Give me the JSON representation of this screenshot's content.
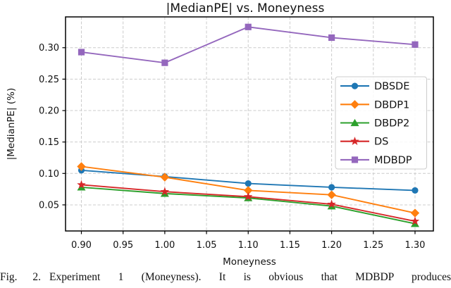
{
  "caption": {
    "label": "Fig. 2.",
    "text": "Experiment 1 (Moneyness). It is obvious that MDBDP produces"
  },
  "chart_data": {
    "type": "line",
    "title": "|MedianPE| vs. Moneyness",
    "xlabel": "Moneyness",
    "ylabel": "|MedianPE| (%)",
    "x": [
      0.9,
      1.0,
      1.1,
      1.2,
      1.3
    ],
    "series": [
      {
        "name": "DBSDE",
        "color": "#1f77b4",
        "marker": "circle",
        "values": [
          0.105,
          0.095,
          0.084,
          0.078,
          0.073
        ]
      },
      {
        "name": "DBDP1",
        "color": "#ff7f0e",
        "marker": "diamond",
        "values": [
          0.111,
          0.094,
          0.073,
          0.066,
          0.037
        ]
      },
      {
        "name": "DBDP2",
        "color": "#2ca02c",
        "marker": "triangle",
        "values": [
          0.078,
          0.068,
          0.061,
          0.048,
          0.02
        ]
      },
      {
        "name": "DS",
        "color": "#d62728",
        "marker": "star",
        "values": [
          0.082,
          0.071,
          0.063,
          0.051,
          0.024
        ]
      },
      {
        "name": "MDBDP",
        "color": "#9467bd",
        "marker": "square",
        "values": [
          0.293,
          0.276,
          0.333,
          0.316,
          0.305
        ]
      }
    ],
    "xticks": [
      0.9,
      0.95,
      1.0,
      1.05,
      1.1,
      1.15,
      1.2,
      1.25,
      1.3
    ],
    "yticks": [
      0.05,
      0.1,
      0.15,
      0.2,
      0.25,
      0.3
    ],
    "xlim": [
      0.881,
      1.322
    ],
    "ylim": [
      0.0085,
      0.349
    ],
    "grid": true,
    "grid_color": "#cccccc",
    "text_color": "#111111",
    "spine_color": "#000000",
    "legend_position": "right"
  }
}
